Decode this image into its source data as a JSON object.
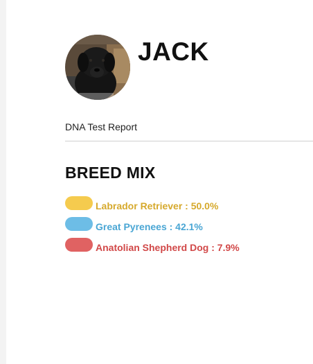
{
  "profile": {
    "name": "JACK",
    "report_label": "DNA Test Report",
    "avatar_icon": "dog-photo"
  },
  "breed_mix": {
    "title": "BREED MIX",
    "items": [
      {
        "text": "Labrador Retriever : 50.0%",
        "breed": "Labrador Retriever",
        "percent": 50.0,
        "color": "#F5CB4E",
        "text_color": "#D6A92C"
      },
      {
        "text": "Great Pyrenees : 42.1%",
        "breed": "Great Pyrenees",
        "percent": 42.1,
        "color": "#6DBDE6",
        "text_color": "#4AA6D4"
      },
      {
        "text": "Anatolian Shepherd Dog : 7.9%",
        "breed": "Anatolian Shepherd Dog",
        "percent": 7.9,
        "color": "#E06262",
        "text_color": "#D14848"
      }
    ]
  }
}
